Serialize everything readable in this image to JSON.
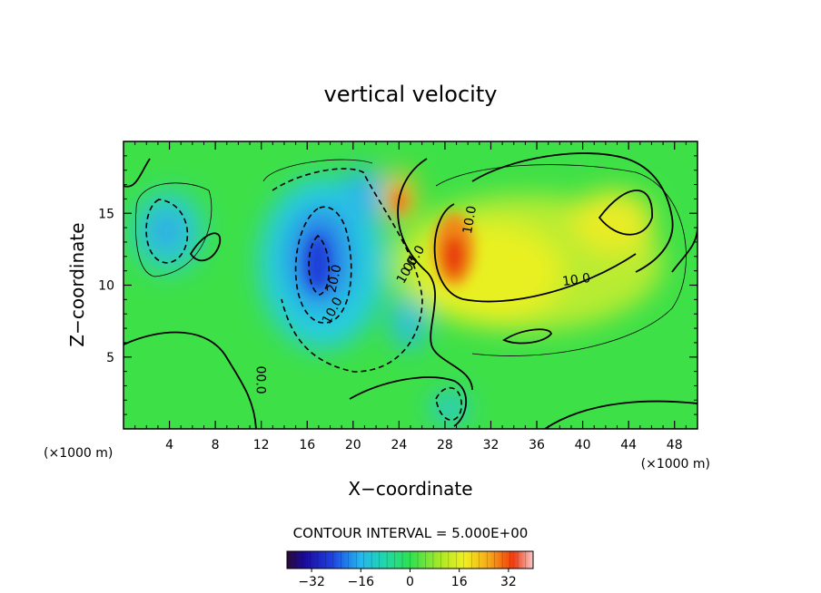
{
  "chart_data": {
    "type": "heatmap",
    "title": "vertical velocity",
    "xlabel": "X−coordinate",
    "ylabel": "Z−coordinate",
    "x_unit": "(×1000 m)",
    "y_unit": "(×1000 m)",
    "xlim": [
      0,
      50
    ],
    "ylim": [
      0,
      20
    ],
    "x_ticks": [
      4,
      8,
      12,
      16,
      20,
      24,
      28,
      32,
      36,
      40,
      44,
      48
    ],
    "y_ticks": [
      5,
      10,
      15
    ],
    "contour_interval_text": "CONTOUR INTERVAL = 5.000E+00",
    "contour_labels": [
      {
        "text": "10.0",
        "x": 30.5,
        "y": 14.5,
        "angle": -80
      },
      {
        "text": "10.0",
        "x": 39.5,
        "y": 10.1,
        "angle": -8
      },
      {
        "text": "10.0",
        "x": 18.5,
        "y": 8.1,
        "angle": -62
      },
      {
        "text": "20.0",
        "x": 18.7,
        "y": 10.4,
        "angle": -78
      },
      {
        "text": "10.0",
        "x": 25.0,
        "y": 10.9,
        "angle": -60
      },
      {
        "text": "00.0",
        "x": 25.6,
        "y": 11.7,
        "angle": -58
      },
      {
        "text": "00.0",
        "x": 11.6,
        "y": 3.4,
        "angle": 90
      }
    ],
    "colorbar": {
      "ticks": [
        -32,
        -16,
        0,
        16,
        32
      ],
      "tick_labels": [
        "−32",
        "−16",
        "0",
        "16",
        "32"
      ],
      "range": [
        -40,
        40
      ]
    },
    "field_features": [
      {
        "kind": "updraft",
        "x": 29.5,
        "y": 12.0,
        "peak": 32
      },
      {
        "kind": "updraft",
        "x": 24.2,
        "y": 16.0,
        "peak": 24
      },
      {
        "kind": "updraft",
        "x": 42.0,
        "y": 14.5,
        "peak": 10
      },
      {
        "kind": "downdraft",
        "x": 17.5,
        "y": 11.5,
        "peak": -25
      },
      {
        "kind": "downdraft",
        "x": 21.0,
        "y": 15.5,
        "peak": -14
      },
      {
        "kind": "downdraft",
        "x": 4.5,
        "y": 14.0,
        "peak": -13
      },
      {
        "kind": "downdraft",
        "x": 25.0,
        "y": 7.5,
        "peak": -12
      },
      {
        "kind": "downdraft",
        "x": 27.0,
        "y": 1.5,
        "peak": -10
      }
    ]
  }
}
